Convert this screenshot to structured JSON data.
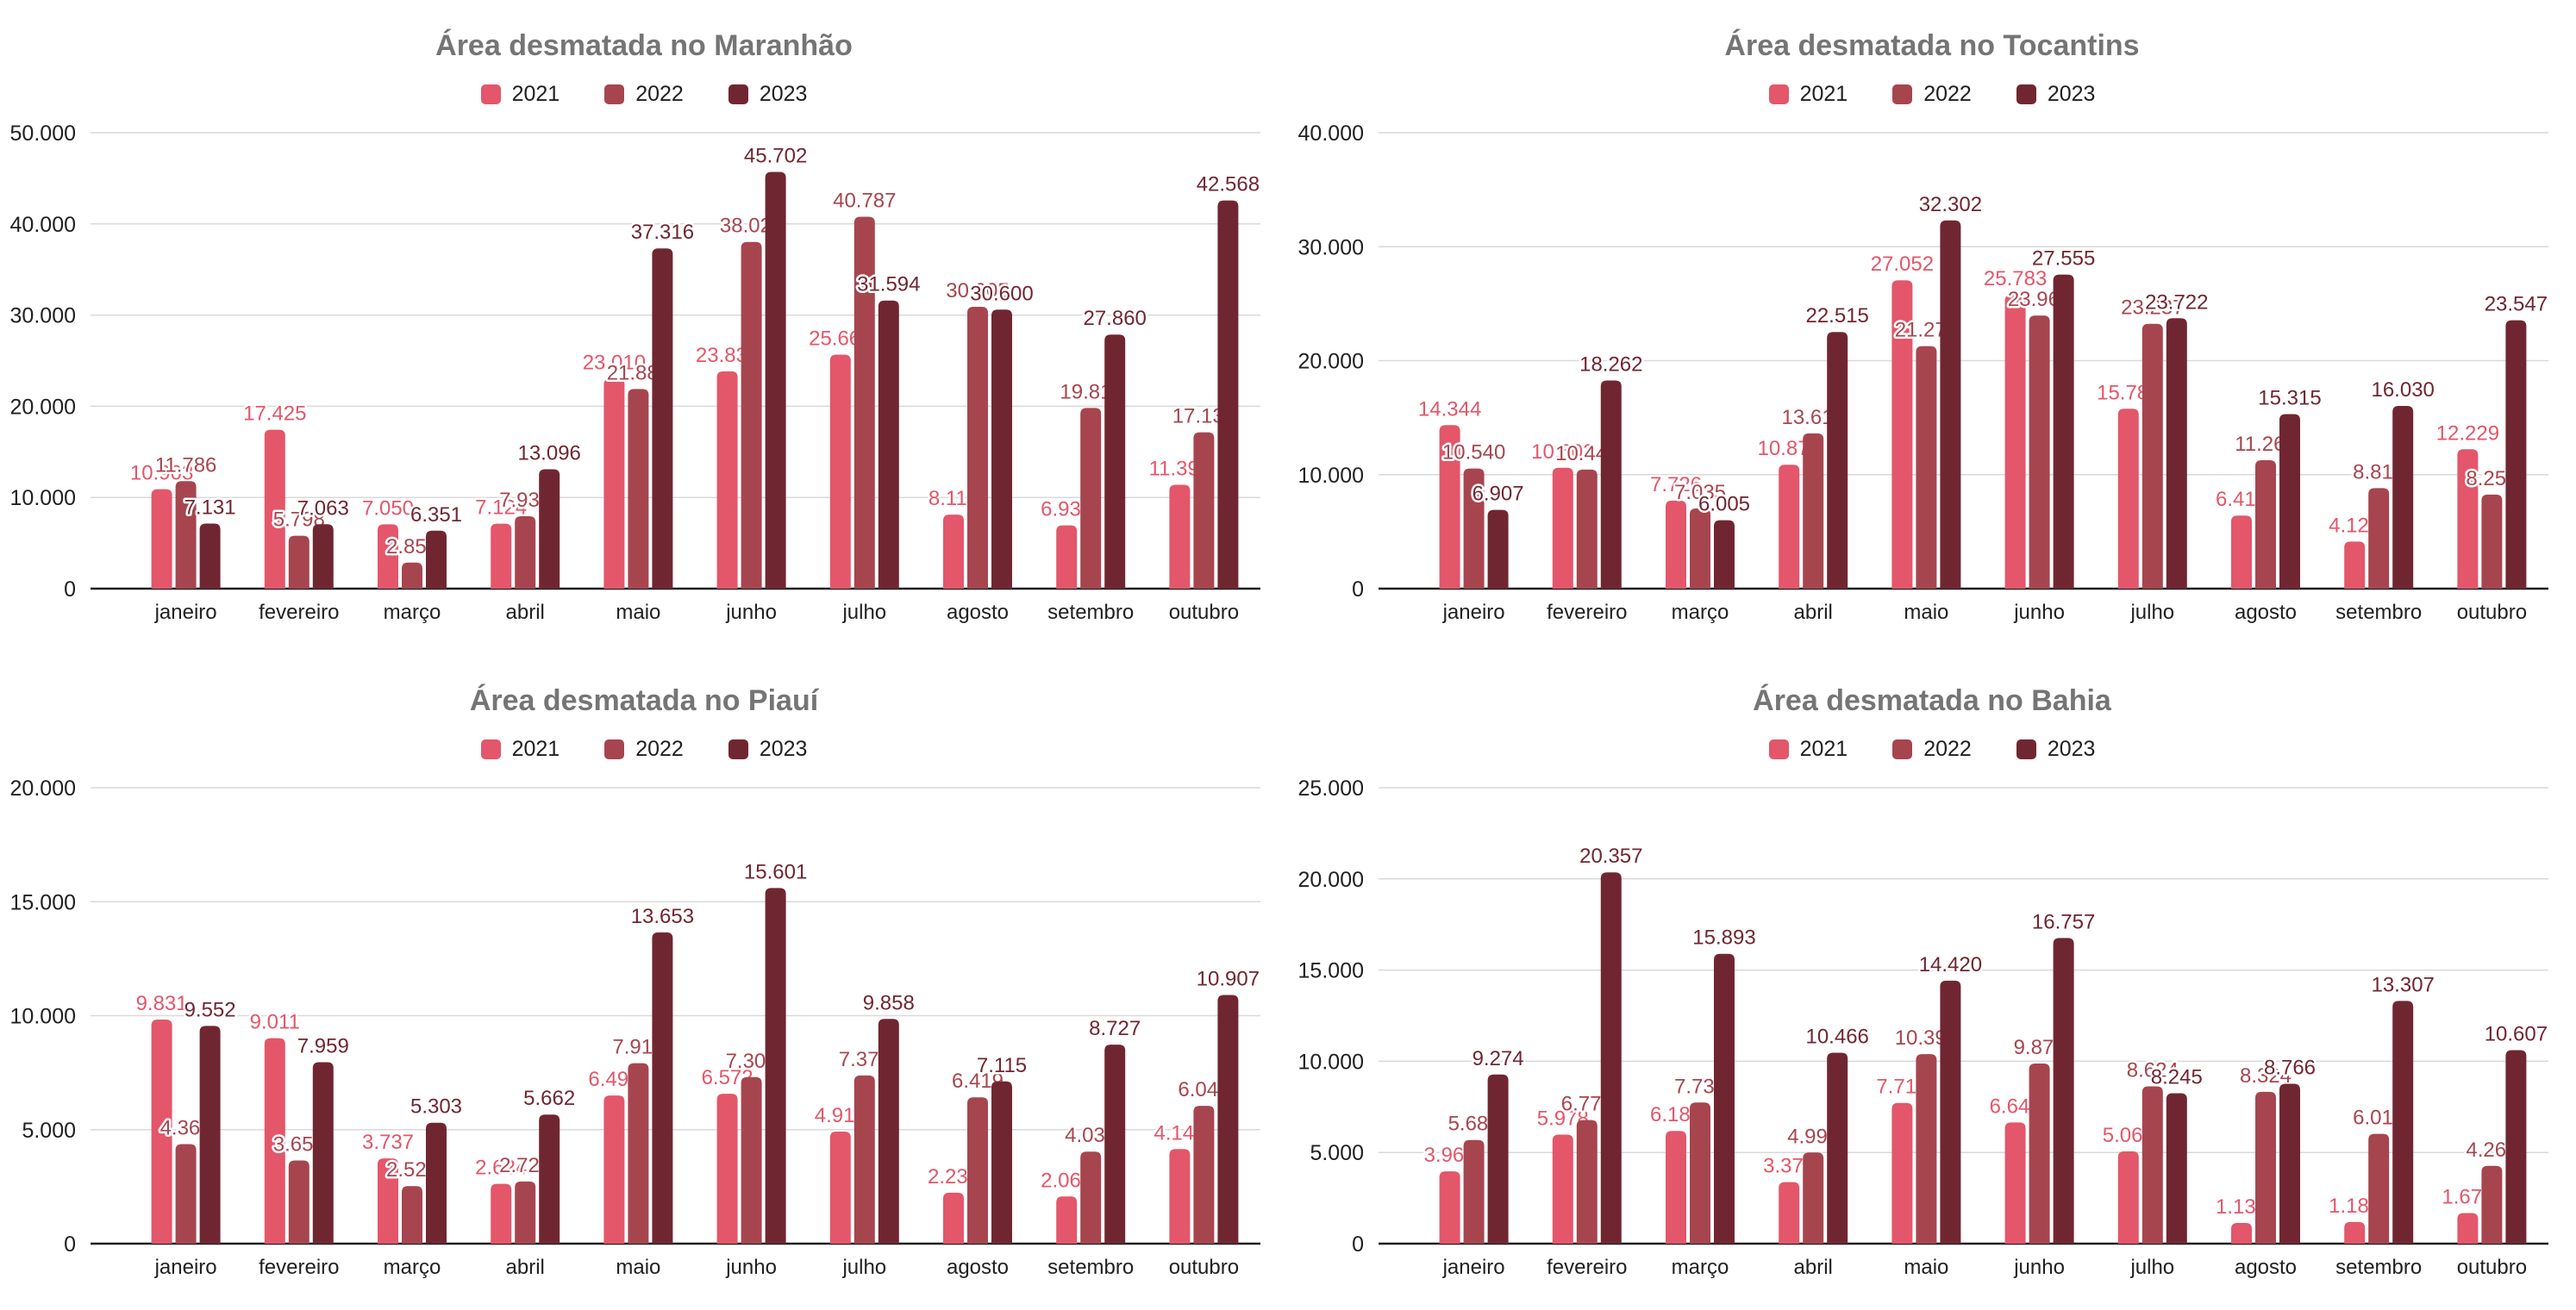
{
  "page": {
    "background": "#ffffff"
  },
  "palette": {
    "series_2021": "#e4566a",
    "series_2022": "#a7454f",
    "series_2023": "#702631",
    "title_color": "#757575",
    "axis_tick_color": "#212121",
    "month_label_color": "#212121",
    "gridline_color": "#d9d9d9",
    "zero_line_color": "#1f1f1f",
    "label_halo_color": "#ffffff"
  },
  "chart_data": [
    {
      "type": "bar",
      "title": "Área desmatada no Maranhão",
      "xlabel": "",
      "ylabel": "",
      "ylim": [
        0,
        50000
      ],
      "ytick_step": 10000,
      "grid": true,
      "legend_position": "top",
      "categories": [
        "janeiro",
        "fevereiro",
        "março",
        "abril",
        "maio",
        "junho",
        "julho",
        "agosto",
        "setembro",
        "outubro"
      ],
      "series": [
        {
          "name": "2021",
          "color": "#e4566a",
          "values": [
            10903,
            17425,
            7050,
            7124,
            23010,
            23835,
            25660,
            8113,
            6930,
            11390
          ]
        },
        {
          "name": "2022",
          "color": "#a7454f",
          "values": [
            11786,
            5798,
            2854,
            7939,
            21887,
            38025,
            40787,
            30905,
            19811,
            17138
          ]
        },
        {
          "name": "2023",
          "color": "#702631",
          "values": [
            7131,
            7063,
            6351,
            13096,
            37316,
            45702,
            31594,
            30600,
            27860,
            42568
          ]
        }
      ]
    },
    {
      "type": "bar",
      "title": "Área desmatada no Tocantins",
      "xlabel": "",
      "ylabel": "",
      "ylim": [
        0,
        40000
      ],
      "ytick_step": 10000,
      "grid": true,
      "legend_position": "top",
      "categories": [
        "janeiro",
        "fevereiro",
        "março",
        "abril",
        "maio",
        "junho",
        "julho",
        "agosto",
        "setembro",
        "outubro"
      ],
      "series": [
        {
          "name": "2021",
          "color": "#e4566a",
          "values": [
            14344,
            10603,
            7726,
            10872,
            27052,
            25783,
            15780,
            6413,
            4128,
            12229
          ]
        },
        {
          "name": "2022",
          "color": "#a7454f",
          "values": [
            10540,
            10444,
            7035,
            13617,
            21272,
            23960,
            23237,
            11262,
            8818,
            8251
          ]
        },
        {
          "name": "2023",
          "color": "#702631",
          "values": [
            6907,
            18262,
            6005,
            22515,
            32302,
            27555,
            23722,
            15315,
            16030,
            23547
          ]
        }
      ]
    },
    {
      "type": "bar",
      "title": "Área desmatada no Piauí",
      "xlabel": "",
      "ylabel": "",
      "ylim": [
        0,
        20000
      ],
      "ytick_step": 5000,
      "grid": true,
      "legend_position": "top",
      "categories": [
        "janeiro",
        "fevereiro",
        "março",
        "abril",
        "maio",
        "junho",
        "julho",
        "agosto",
        "setembro",
        "outubro"
      ],
      "series": [
        {
          "name": "2021",
          "color": "#e4566a",
          "values": [
            9831,
            9011,
            3737,
            2624,
            6497,
            6572,
            4913,
            2233,
            2069,
            4149
          ]
        },
        {
          "name": "2022",
          "color": "#a7454f",
          "values": [
            4367,
            3650,
            2525,
            2725,
            7915,
            7305,
            7378,
            6419,
            4037,
            6046
          ]
        },
        {
          "name": "2023",
          "color": "#702631",
          "values": [
            9552,
            7959,
            5303,
            5662,
            13653,
            15601,
            9858,
            7115,
            8727,
            10907
          ]
        }
      ]
    },
    {
      "type": "bar",
      "title": "Área desmatada no Bahia",
      "xlabel": "",
      "ylabel": "",
      "ylim": [
        0,
        25000
      ],
      "ytick_step": 5000,
      "grid": true,
      "legend_position": "top",
      "categories": [
        "janeiro",
        "fevereiro",
        "março",
        "abril",
        "maio",
        "junho",
        "julho",
        "agosto",
        "setembro",
        "outubro"
      ],
      "series": [
        {
          "name": "2021",
          "color": "#e4566a",
          "values": [
            3962,
            5978,
            6182,
            3376,
            7716,
            6647,
            5061,
            1133,
            1188,
            1677
          ]
        },
        {
          "name": "2022",
          "color": "#a7454f",
          "values": [
            5683,
            6778,
            7738,
            4995,
            10392,
            9876,
            8624,
            8324,
            6018,
            4265
          ]
        },
        {
          "name": "2023",
          "color": "#702631",
          "values": [
            9274,
            20357,
            15893,
            10466,
            14420,
            16757,
            8245,
            8766,
            13307,
            10607
          ]
        }
      ]
    }
  ]
}
